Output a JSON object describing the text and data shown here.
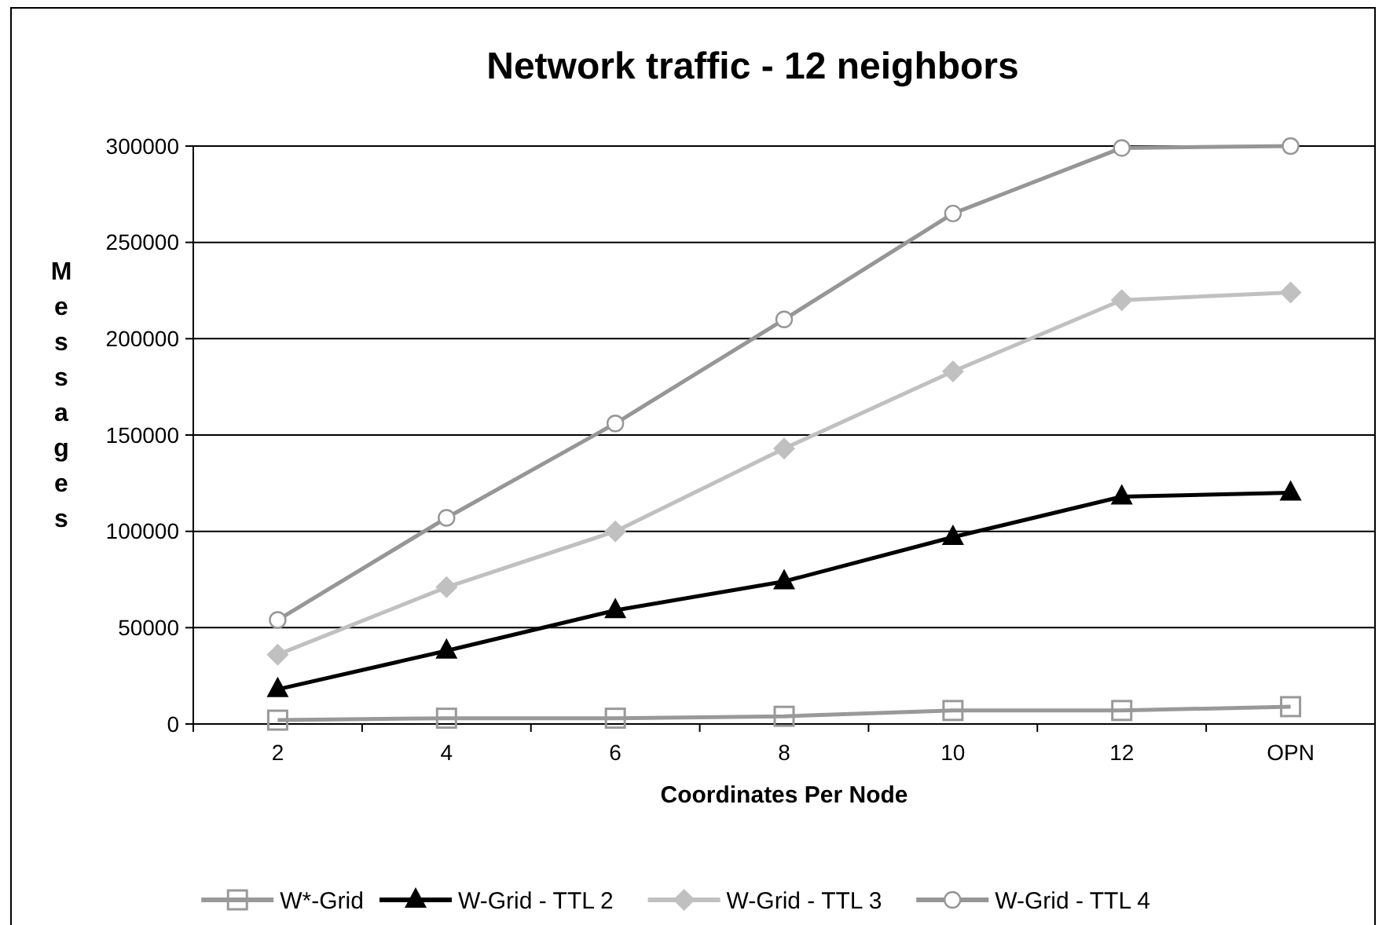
{
  "chart_data": {
    "type": "line",
    "title": "Network traffic - 12 neighbors",
    "xlabel": "Coordinates Per Node",
    "ylabel": "Messages",
    "categories": [
      "2",
      "4",
      "6",
      "8",
      "10",
      "12",
      "OPN"
    ],
    "series": [
      {
        "name": "W*-Grid",
        "color": "#999999",
        "marker": "square",
        "values": [
          2000,
          3000,
          3000,
          4000,
          7000,
          7000,
          9000
        ]
      },
      {
        "name": "W-Grid - TTL 2",
        "color": "#000000",
        "marker": "triangle",
        "values": [
          18000,
          38000,
          59000,
          74000,
          97000,
          118000,
          120000
        ]
      },
      {
        "name": "W-Grid - TTL 3",
        "color": "#c0c0c0",
        "marker": "diamond",
        "values": [
          36000,
          71000,
          100000,
          143000,
          183000,
          220000,
          224000
        ]
      },
      {
        "name": "W-Grid - TTL 4",
        "color": "#969696",
        "marker": "circle",
        "values": [
          54000,
          107000,
          156000,
          210000,
          265000,
          299000,
          300000
        ]
      }
    ],
    "ylim": [
      0,
      300000
    ],
    "yticks": [
      0,
      50000,
      100000,
      150000,
      200000,
      250000,
      300000
    ],
    "grid": "y",
    "legend": "bottom"
  }
}
